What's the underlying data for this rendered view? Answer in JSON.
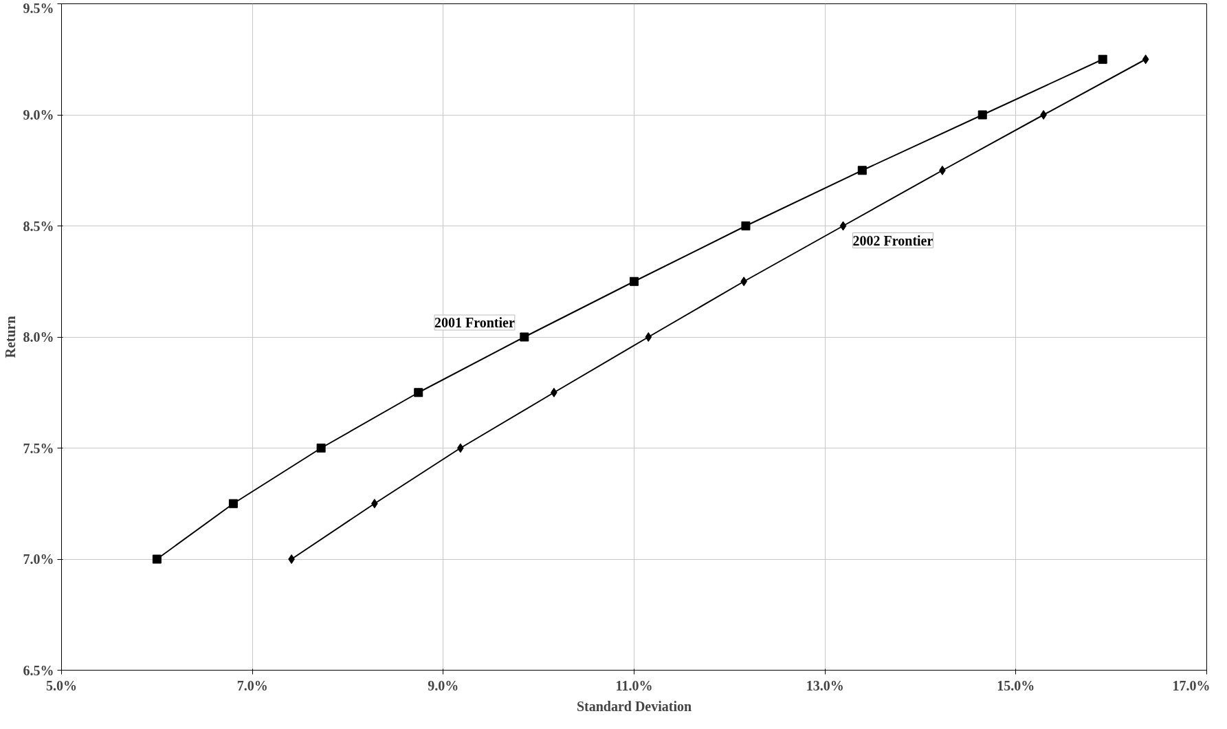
{
  "chart_data": {
    "type": "line",
    "xlabel": "Standard Deviation",
    "ylabel": "Return",
    "xlim": [
      5.0,
      17.0
    ],
    "ylim": [
      6.5,
      9.5
    ],
    "xticks": [
      {
        "value": 5,
        "label": "5.0%"
      },
      {
        "value": 7,
        "label": "7.0%"
      },
      {
        "value": 9,
        "label": "9.0%"
      },
      {
        "value": 11,
        "label": "11.0%"
      },
      {
        "value": 13,
        "label": "13.0%"
      },
      {
        "value": 15,
        "label": "15.0%"
      },
      {
        "value": 17,
        "label": "17.0%"
      }
    ],
    "yticks": [
      {
        "value": 6.5,
        "label": "6.5%"
      },
      {
        "value": 7,
        "label": "7.0%"
      },
      {
        "value": 7.5,
        "label": "7.5%"
      },
      {
        "value": 8,
        "label": "8.0%"
      },
      {
        "value": 8.5,
        "label": "8.5%"
      },
      {
        "value": 9,
        "label": "9.0%"
      },
      {
        "value": 9.5,
        "label": "9.5%"
      }
    ],
    "grid": true,
    "line_style": "solid",
    "series": [
      {
        "name": "2001 Frontier",
        "color": "#000000",
        "marker": "square",
        "x": [
          6.0,
          6.8,
          7.72,
          8.74,
          9.85,
          11.0,
          12.17,
          13.39,
          14.65,
          15.91
        ],
        "values": [
          7.0,
          7.25,
          7.5,
          7.75,
          8.0,
          8.25,
          8.5,
          8.75,
          9.0,
          9.25
        ]
      },
      {
        "name": "2002 Frontier",
        "color": "#000000",
        "marker": "diamond",
        "x": [
          7.41,
          8.28,
          9.18,
          10.16,
          11.15,
          12.15,
          13.19,
          14.23,
          15.29,
          16.36
        ],
        "values": [
          7.0,
          7.25,
          7.5,
          7.75,
          8.0,
          8.25,
          8.5,
          8.75,
          9.0,
          9.25
        ]
      }
    ]
  }
}
